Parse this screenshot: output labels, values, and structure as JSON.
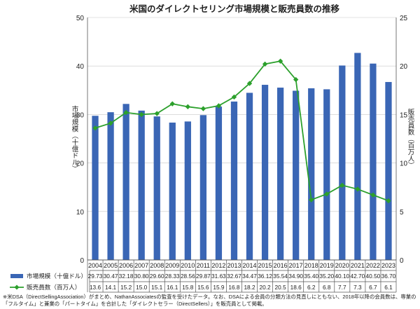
{
  "chart_data": {
    "type": "bar+line",
    "title": "米国のダイレクトセリング市場規模と販売員数の推移",
    "categories": [
      "2004",
      "2005",
      "2006",
      "2007",
      "2008",
      "2009",
      "2010",
      "2011",
      "2012",
      "2013",
      "2014",
      "2015",
      "2016",
      "2017",
      "2018",
      "2019",
      "2020",
      "2021",
      "2022",
      "2023"
    ],
    "series": [
      {
        "name": "市場規模（十億ドル）",
        "type": "bar",
        "axis": "left",
        "color": "#3a66b5",
        "values": [
          29.73,
          30.47,
          32.18,
          30.8,
          29.6,
          28.33,
          28.56,
          29.87,
          31.63,
          32.67,
          34.47,
          36.12,
          35.54,
          34.9,
          35.4,
          35.2,
          40.1,
          42.7,
          40.5,
          36.7
        ],
        "labels": [
          "29.73",
          "30.47",
          "32.18",
          "30.80",
          "29.60",
          "28.33",
          "28.56",
          "29.87",
          "31.63",
          "32.67",
          "34.47",
          "36.12",
          "35.54",
          "34.90",
          "35.40",
          "35.20",
          "40.10",
          "42.70",
          "40.50",
          "36.70"
        ]
      },
      {
        "name": "販売員数（百万人）",
        "type": "line",
        "axis": "right",
        "color": "#2ca02c",
        "values": [
          13.6,
          14.1,
          15.2,
          15.0,
          15.1,
          16.1,
          15.8,
          15.6,
          15.9,
          16.8,
          18.2,
          20.2,
          20.5,
          18.6,
          6.2,
          6.8,
          7.7,
          7.3,
          6.7,
          6.1
        ],
        "labels": [
          "13.6",
          "14.1",
          "15.2",
          "15.0",
          "15.1",
          "16.1",
          "15.8",
          "15.6",
          "15.9",
          "16.8",
          "18.2",
          "20.2",
          "20.5",
          "18.6",
          "6.2",
          "6.8",
          "7.7",
          "7.3",
          "6.7",
          "6.1"
        ]
      }
    ],
    "y_left": {
      "label": "市場規模（十億ドル）",
      "min": 0,
      "max": 50,
      "ticks": [
        "0",
        "10",
        "20",
        "30",
        "40",
        "50"
      ]
    },
    "y_right": {
      "label": "販売員数（百万人）",
      "min": 0,
      "max": 25,
      "ticks": [
        "0",
        "5",
        "10",
        "15",
        "20",
        "25"
      ]
    },
    "grid": true,
    "legend": "data-table-below"
  },
  "footnote": "※米DSA（DirectSellingAssociation）がまとめ、NathanAssociatesの監査を受けたデータ。なお、DSAによる会員の分類方法の見直しにともない、2018年以降の会員数は、専業の「フルタイム」と兼業の「パートタイム」を合計した「ダイレクトセラー（DirectSellers）」を販売員として掲載。"
}
